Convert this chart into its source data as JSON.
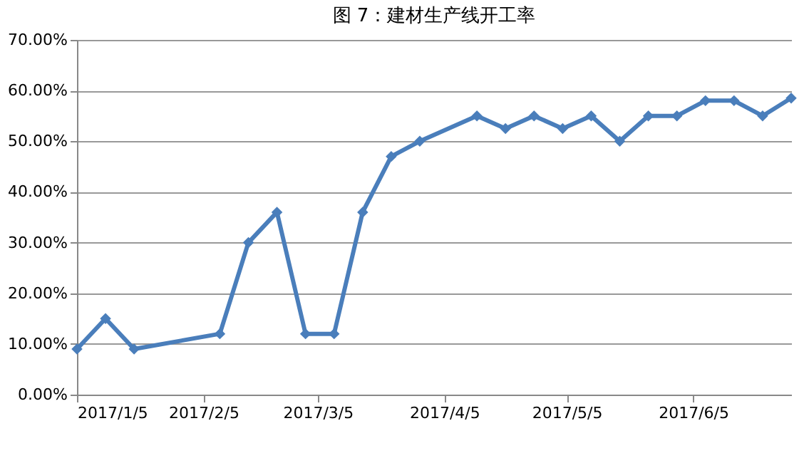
{
  "chart_data": {
    "type": "line",
    "title": "图 7：建材生产线开工率",
    "x": [
      "2017-01-05",
      "2017-01-12",
      "2017-01-19",
      "2017-02-09",
      "2017-02-16",
      "2017-02-23",
      "2017-03-02",
      "2017-03-09",
      "2017-03-16",
      "2017-03-23",
      "2017-03-30",
      "2017-04-13",
      "2017-04-20",
      "2017-04-27",
      "2017-05-04",
      "2017-05-11",
      "2017-05-18",
      "2017-05-25",
      "2017-06-01",
      "2017-06-08",
      "2017-06-15",
      "2017-06-22",
      "2017-06-29"
    ],
    "series": [
      {
        "color": "#4a7ebb",
        "values": [
          9,
          15,
          9,
          12,
          30,
          36,
          12,
          12,
          36,
          47,
          50,
          55,
          52.5,
          55,
          52.5,
          55,
          50,
          55,
          55,
          58,
          58,
          55,
          58.5
        ]
      }
    ],
    "xlim": [
      "2017-01-05",
      "2017-06-29"
    ],
    "xticks": [
      {
        "value": "2017-01-05",
        "label": "2017/1/5"
      },
      {
        "value": "2017-02-05",
        "label": "2017/2/5"
      },
      {
        "value": "2017-03-05",
        "label": "2017/3/5"
      },
      {
        "value": "2017-04-05",
        "label": "2017/4/5"
      },
      {
        "value": "2017-05-05",
        "label": "2017/5/5"
      },
      {
        "value": "2017-06-05",
        "label": "2017/6/5"
      }
    ],
    "ylim": [
      0,
      70
    ],
    "yticks": [
      {
        "value": 0,
        "label": "0.00%"
      },
      {
        "value": 10,
        "label": "10.00%"
      },
      {
        "value": 20,
        "label": "20.00%"
      },
      {
        "value": 30,
        "label": "30.00%"
      },
      {
        "value": 40,
        "label": "40.00%"
      },
      {
        "value": 50,
        "label": "50.00%"
      },
      {
        "value": 60,
        "label": "60.00%"
      },
      {
        "value": 70,
        "label": "70.00%"
      }
    ],
    "grid": "y",
    "marker": "diamond",
    "line_style": "solid"
  }
}
